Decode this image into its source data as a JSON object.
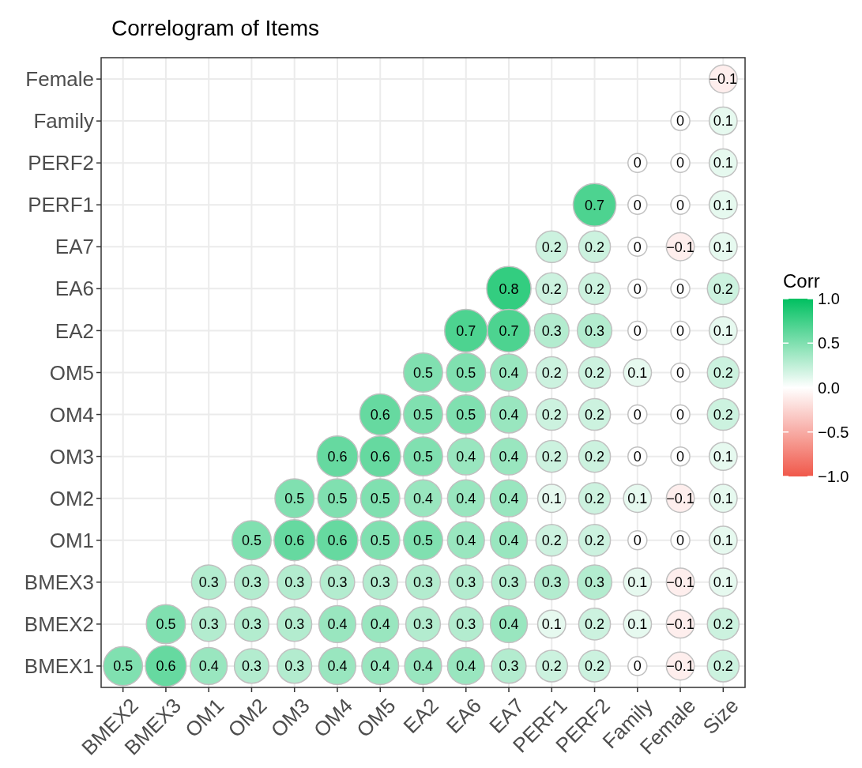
{
  "chart_data": {
    "type": "heatmap",
    "title": "Correlogram of Items",
    "clabel": "Corr",
    "categories": [
      "BMEX2",
      "BMEX3",
      "OM1",
      "OM2",
      "OM3",
      "OM4",
      "OM5",
      "EA2",
      "EA6",
      "EA7",
      "PERF1",
      "PERF2",
      "Family",
      "Female",
      "Size"
    ],
    "y_categories": [
      "Female",
      "Family",
      "PERF2",
      "PERF1",
      "EA7",
      "EA6",
      "EA2",
      "OM5",
      "OM4",
      "OM3",
      "OM2",
      "OM1",
      "BMEX3",
      "BMEX2",
      "BMEX1"
    ],
    "cells": [
      [
        null,
        null,
        null,
        null,
        null,
        null,
        null,
        null,
        null,
        null,
        null,
        null,
        null,
        null,
        -0.1
      ],
      [
        null,
        null,
        null,
        null,
        null,
        null,
        null,
        null,
        null,
        null,
        null,
        null,
        null,
        0,
        0.1
      ],
      [
        null,
        null,
        null,
        null,
        null,
        null,
        null,
        null,
        null,
        null,
        null,
        null,
        0,
        0,
        0.1
      ],
      [
        null,
        null,
        null,
        null,
        null,
        null,
        null,
        null,
        null,
        null,
        null,
        0.7,
        0,
        0,
        0.1
      ],
      [
        null,
        null,
        null,
        null,
        null,
        null,
        null,
        null,
        null,
        null,
        0.2,
        0.2,
        0,
        -0.1,
        0.1
      ],
      [
        null,
        null,
        null,
        null,
        null,
        null,
        null,
        null,
        null,
        0.8,
        0.2,
        0.2,
        0,
        0,
        0.2
      ],
      [
        null,
        null,
        null,
        null,
        null,
        null,
        null,
        null,
        0.7,
        0.7,
        0.3,
        0.3,
        0,
        0,
        0.1
      ],
      [
        null,
        null,
        null,
        null,
        null,
        null,
        null,
        0.5,
        0.5,
        0.4,
        0.2,
        0.2,
        0.1,
        0,
        0.2
      ],
      [
        null,
        null,
        null,
        null,
        null,
        null,
        0.6,
        0.5,
        0.5,
        0.4,
        0.2,
        0.2,
        0,
        0,
        0.2
      ],
      [
        null,
        null,
        null,
        null,
        null,
        0.6,
        0.6,
        0.5,
        0.4,
        0.4,
        0.2,
        0.2,
        0,
        0,
        0.1
      ],
      [
        null,
        null,
        null,
        null,
        0.5,
        0.5,
        0.5,
        0.4,
        0.4,
        0.4,
        0.1,
        0.2,
        0.1,
        -0.1,
        0.1
      ],
      [
        null,
        null,
        null,
        0.5,
        0.6,
        0.6,
        0.5,
        0.5,
        0.4,
        0.4,
        0.2,
        0.2,
        0,
        0,
        0.1
      ],
      [
        null,
        null,
        0.3,
        0.3,
        0.3,
        0.3,
        0.3,
        0.3,
        0.3,
        0.3,
        0.3,
        0.3,
        0.1,
        -0.1,
        0.1
      ],
      [
        null,
        0.5,
        0.3,
        0.3,
        0.3,
        0.4,
        0.4,
        0.3,
        0.3,
        0.4,
        0.1,
        0.2,
        0.1,
        -0.1,
        0.2
      ],
      [
        0.5,
        0.6,
        0.4,
        0.3,
        0.3,
        0.4,
        0.4,
        0.4,
        0.4,
        0.3,
        0.2,
        0.2,
        0,
        -0.1,
        0.2
      ]
    ],
    "clim": [
      -1,
      1
    ],
    "cticks": [
      {
        "value": -1,
        "label": "−1.0"
      },
      {
        "value": -0.5,
        "label": "−0.5"
      },
      {
        "value": 0,
        "label": "0.0"
      },
      {
        "value": 0.5,
        "label": "0.5"
      },
      {
        "value": 1,
        "label": "1.0"
      }
    ],
    "data_labels": true,
    "grid": true
  }
}
